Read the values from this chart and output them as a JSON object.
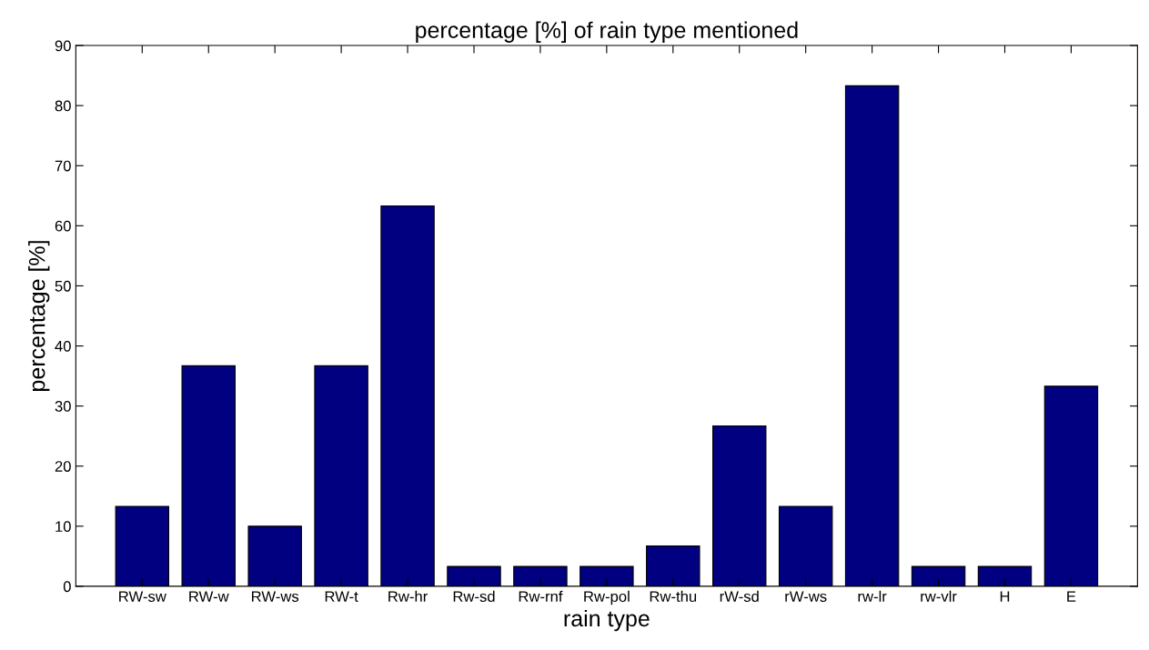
{
  "chart_data": {
    "type": "bar",
    "title": "percentage [%] of rain type mentioned",
    "xlabel": "rain type",
    "ylabel": "percentage [%]",
    "categories": [
      "RW-sw",
      "RW-w",
      "RW-ws",
      "RW-t",
      "Rw-hr",
      "Rw-sd",
      "Rw-rnf",
      "Rw-pol",
      "Rw-thu",
      "rW-sd",
      "rW-ws",
      "rw-lr",
      "rw-vlr",
      "H",
      "E"
    ],
    "values": [
      13.3,
      36.7,
      10,
      36.7,
      63.3,
      3.3,
      3.3,
      3.3,
      6.7,
      26.7,
      13.3,
      83.3,
      3.3,
      3.3,
      33.3
    ],
    "color": "#000080",
    "ylim": [
      0,
      90
    ],
    "yticks": [
      0,
      10,
      20,
      30,
      40,
      50,
      60,
      70,
      80,
      90
    ],
    "grid": false,
    "legend": false
  }
}
